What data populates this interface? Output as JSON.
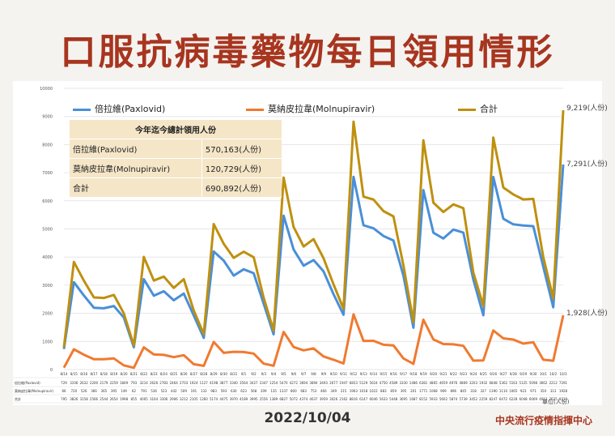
{
  "title": "口服抗病毒藥物每日領用情形",
  "date": "2022/10/04",
  "org": "中央流行疫情指揮中心",
  "unit": "單位(人份)",
  "summary": {
    "header": "今年迄今總計領用人份",
    "rows": [
      {
        "label": "倍拉維(Paxlovid)",
        "value": "570,163(人份)"
      },
      {
        "label": "莫納皮拉韋(Molnupiravir)",
        "value": "120,729(人份)"
      },
      {
        "label": "合計",
        "value": "690,892(人份)"
      }
    ]
  },
  "end_labels": {
    "total": "9,219(人份)",
    "paxlovid": "7,291(人份)",
    "molnupiravir": "1,928(人份)"
  },
  "chart_data": {
    "type": "line",
    "ylim": [
      0,
      10000
    ],
    "yticks": [
      "0",
      "1000",
      "2000",
      "3000",
      "4000",
      "5000",
      "6000",
      "7000",
      "8000",
      "9000",
      "10000"
    ],
    "grid": true,
    "legend_position": "top",
    "x": [
      "8/14",
      "8/15",
      "8/16",
      "8/17",
      "8/18",
      "8/19",
      "8/20",
      "8/21",
      "8/22",
      "8/23",
      "8/24",
      "8/25",
      "8/26",
      "8/27",
      "8/28",
      "8/29",
      "8/30",
      "8/31",
      "9/1",
      "9/2",
      "9/3",
      "9/4",
      "9/5",
      "9/6",
      "9/7",
      "9/8",
      "9/9",
      "9/10",
      "9/11",
      "9/12",
      "9/13",
      "9/14",
      "9/15",
      "9/16",
      "9/17",
      "9/18",
      "9/19",
      "9/20",
      "9/21",
      "9/22",
      "9/23",
      "9/24",
      "9/25",
      "9/26",
      "9/27",
      "9/28",
      "9/29",
      "9/30",
      "10/1",
      "10/2",
      "10/3"
    ],
    "series": [
      {
        "name": "倍拉維(Paxlovid)",
        "table_label": "倍拉維(Paxlovid)",
        "color": "#4a8fd8",
        "values": [
          729,
          3106,
          2632,
          2200,
          2179,
          2259,
          1849,
          793,
          3214,
          2626,
          2783,
          2464,
          2703,
          1924,
          1127,
          4198,
          3877,
          3340,
          3564,
          3427,
          2347,
          1254,
          5470,
          4272,
          3694,
          3894,
          3493,
          2677,
          1947,
          6853,
          5129,
          5024,
          4750,
          4589,
          3330,
          1486,
          6381,
          4865,
          4659,
          4976,
          4869,
          3203,
          1932,
          6848,
          5362,
          5163,
          5125,
          5098,
          3662,
          2212,
          7291
        ]
      },
      {
        "name": "莫納皮拉韋(Molnupiravir)",
        "table_label": "莫納皮拉韋(Molnupiravir)",
        "color": "#f07a30",
        "values": [
          66,
          720,
          526,
          366,
          365,
          395,
          149,
          62,
          791,
          536,
          523,
          442,
          509,
          191,
          133,
          983,
          593,
          630,
          623,
          568,
          209,
          135,
          1337,
          800,
          683,
          753,
          466,
          349,
          215,
          1963,
          1018,
          1022,
          883,
          859,
          395,
          201,
          1771,
          1068,
          909,
          896,
          845,
          318,
          327,
          1390,
          1110,
          1065,
          923,
          971,
          350,
          313,
          1928
        ]
      },
      {
        "name": "合計",
        "table_label": "合計",
        "color": "#bf9010",
        "values": [
          795,
          3826,
          3158,
          2566,
          2544,
          2654,
          1998,
          855,
          4005,
          3164,
          3306,
          2906,
          3212,
          2105,
          1260,
          5174,
          4475,
          3970,
          4189,
          3995,
          2556,
          1389,
          6827,
          5072,
          4374,
          4637,
          3959,
          3026,
          2162,
          8816,
          6147,
          6046,
          5633,
          5448,
          3695,
          1687,
          8152,
          5933,
          5602,
          5874,
          5739,
          3452,
          2259,
          8247,
          6472,
          6228,
          6048,
          6069,
          4012,
          2525,
          9219
        ]
      }
    ]
  }
}
